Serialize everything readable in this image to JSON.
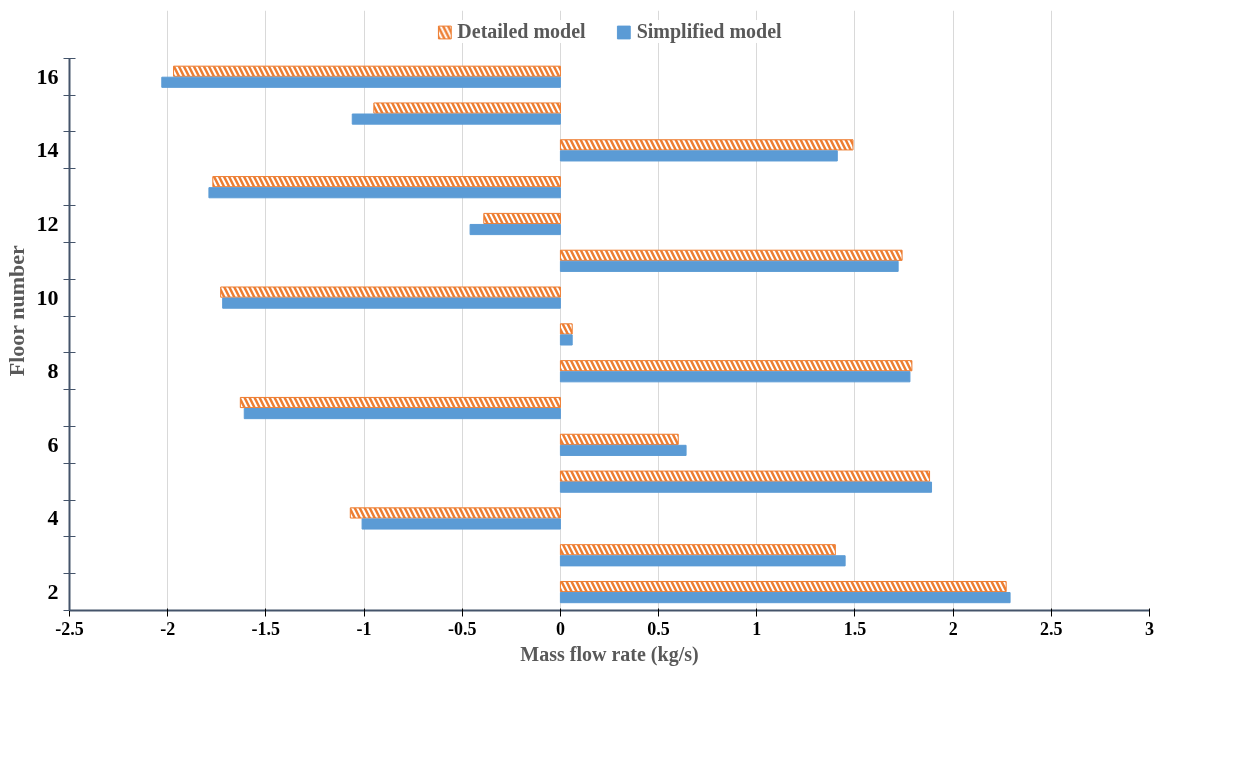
{
  "chart_data": {
    "type": "bar",
    "orientation": "horizontal",
    "xlabel": "Mass flow rate (kg/s)",
    "ylabel": "Floor number",
    "categories": [
      "16",
      null,
      "14",
      null,
      "12",
      null,
      "10",
      null,
      "8",
      null,
      "6",
      null,
      "4",
      null,
      "2"
    ],
    "series": [
      {
        "name": "Detailed model",
        "color": "#ed7d31",
        "values": [
          -1.97,
          -0.95,
          1.49,
          -1.77,
          -0.39,
          1.74,
          -1.73,
          0.06,
          1.79,
          -1.63,
          0.6,
          1.88,
          -1.07,
          1.4,
          2.27
        ]
      },
      {
        "name": "Simplified model",
        "color": "#5b9bd5",
        "values": [
          -2.03,
          -1.06,
          1.41,
          -1.79,
          -0.46,
          1.72,
          -1.72,
          0.06,
          1.78,
          -1.61,
          0.64,
          1.89,
          -1.01,
          1.45,
          2.29
        ]
      }
    ],
    "xlim": [
      -2.5,
      3
    ],
    "xticks": [
      -2.5,
      -2,
      -1.5,
      -1,
      -0.5,
      0,
      0.5,
      1,
      1.5,
      2,
      2.5,
      3
    ],
    "grid": "x",
    "legend": "top"
  }
}
